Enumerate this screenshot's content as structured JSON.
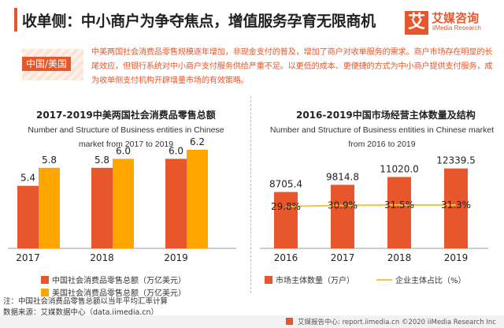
{
  "header": {
    "title": "收单侧：中小商户为争夺焦点，增值服务孕育无限商机",
    "logo_mark": "艾",
    "logo_cn": "艾媒咨询",
    "logo_en": "iiMedia Research"
  },
  "intro": {
    "tag": "中国/美国",
    "text": "中美两国社会消费品零售规模逐年增加，非现金支付的普及，增加了商户对收单服务的需求。商户市场存在明显的长尾效应，但银行系统对中小商户支付服务供给严重不足。以更低的成本、更便捷的方式为中小商户提供支付服务，成为收单侧支付机构开辟增量市场的有效策略。"
  },
  "colors": {
    "china": "#e8572b",
    "usa": "#ffa500",
    "line": "#f5c242"
  },
  "chart_data": [
    {
      "type": "bar",
      "title": "2017-2019中美两国社会消费品零售总额",
      "subtitle": "Number and Structure of Business entities in Chinese market from 2017 to 2019",
      "categories": [
        "2017",
        "2018",
        "2019"
      ],
      "series": [
        {
          "name": "中国社会消费品零售总额（万亿美元）",
          "values": [
            5.4,
            5.8,
            6.0
          ]
        },
        {
          "name": "美国社会消费品零售总额（万亿美元）",
          "values": [
            5.8,
            6.0,
            6.2
          ]
        }
      ],
      "grid": false
    },
    {
      "type": "bar",
      "title": "2016-2019中国市场经营主体数量及结构",
      "subtitle": "Number and Structure of Business entities in Chinese market from 2016 to 2019",
      "categories": [
        "2016",
        "2017",
        "2018",
        "2019"
      ],
      "series": [
        {
          "name": "市场主体数量（万户）",
          "values": [
            8705.4,
            9814.8,
            11020.0,
            12339.5
          ],
          "labels": [
            "8705.4",
            "9814.8",
            "11020.0",
            "12339.5"
          ]
        },
        {
          "name": "企业主体占比（%）",
          "type": "line",
          "values": [
            29.8,
            30.9,
            31.5,
            31.3
          ],
          "labels": [
            "29.8%",
            "30.9%",
            "31.5%",
            "31.3%"
          ]
        }
      ],
      "grid": false
    }
  ],
  "notes": {
    "note": "注：中国社会消费品零售总额以当年平均汇率计算",
    "source": "数据来源：艾媒数据中心（data.iimedia.cn）"
  },
  "footer": {
    "text": "艾媒报告中心: report.iimedia.cn ©2020  iiMedia Research  Inc"
  }
}
